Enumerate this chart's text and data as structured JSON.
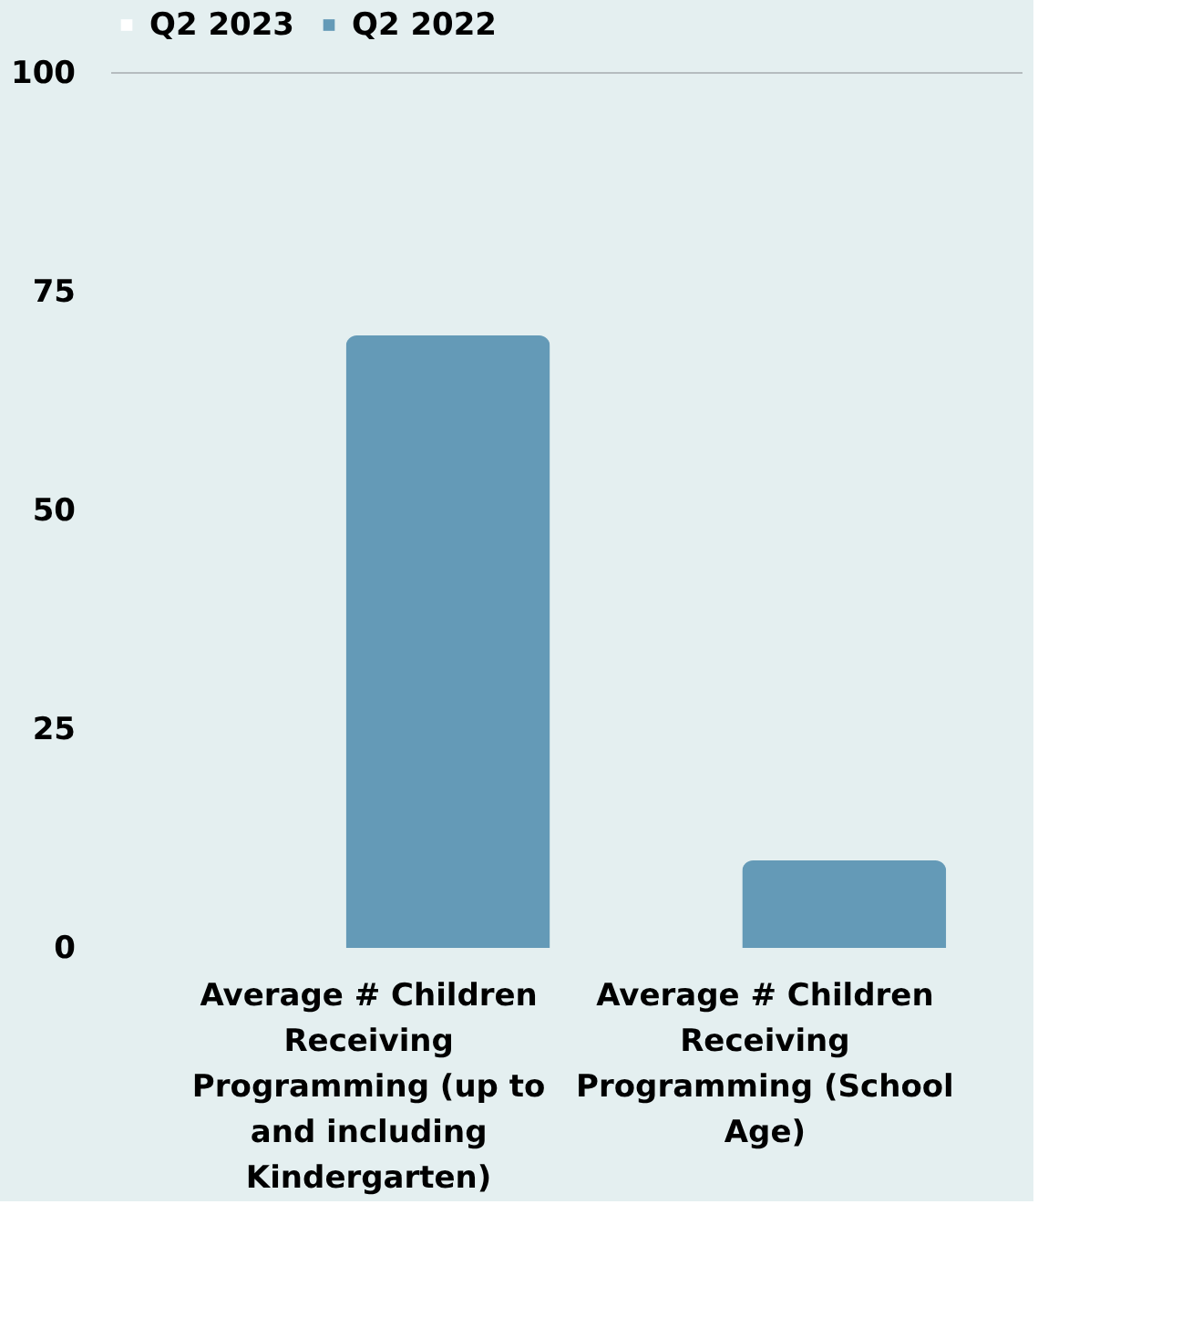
{
  "chart_data": {
    "type": "bar",
    "categories": [
      "Average # Children Receiving Programming (up to and including Kindergarten)",
      "Average # Children Receiving Programming (School Age)"
    ],
    "series": [
      {
        "name": "Q2 2023",
        "color": "#ffffff",
        "values": [
          null,
          null
        ]
      },
      {
        "name": "Q2 2022",
        "color": "#649ab7",
        "values": [
          70,
          10
        ]
      }
    ],
    "ylim": [
      0,
      100
    ],
    "yticks": [
      0,
      25,
      50,
      75,
      100
    ],
    "ref_lines": [
      {
        "axis": "y",
        "value": 100,
        "color": "#b5bcbf"
      }
    ],
    "legend": "top",
    "grid": false
  }
}
